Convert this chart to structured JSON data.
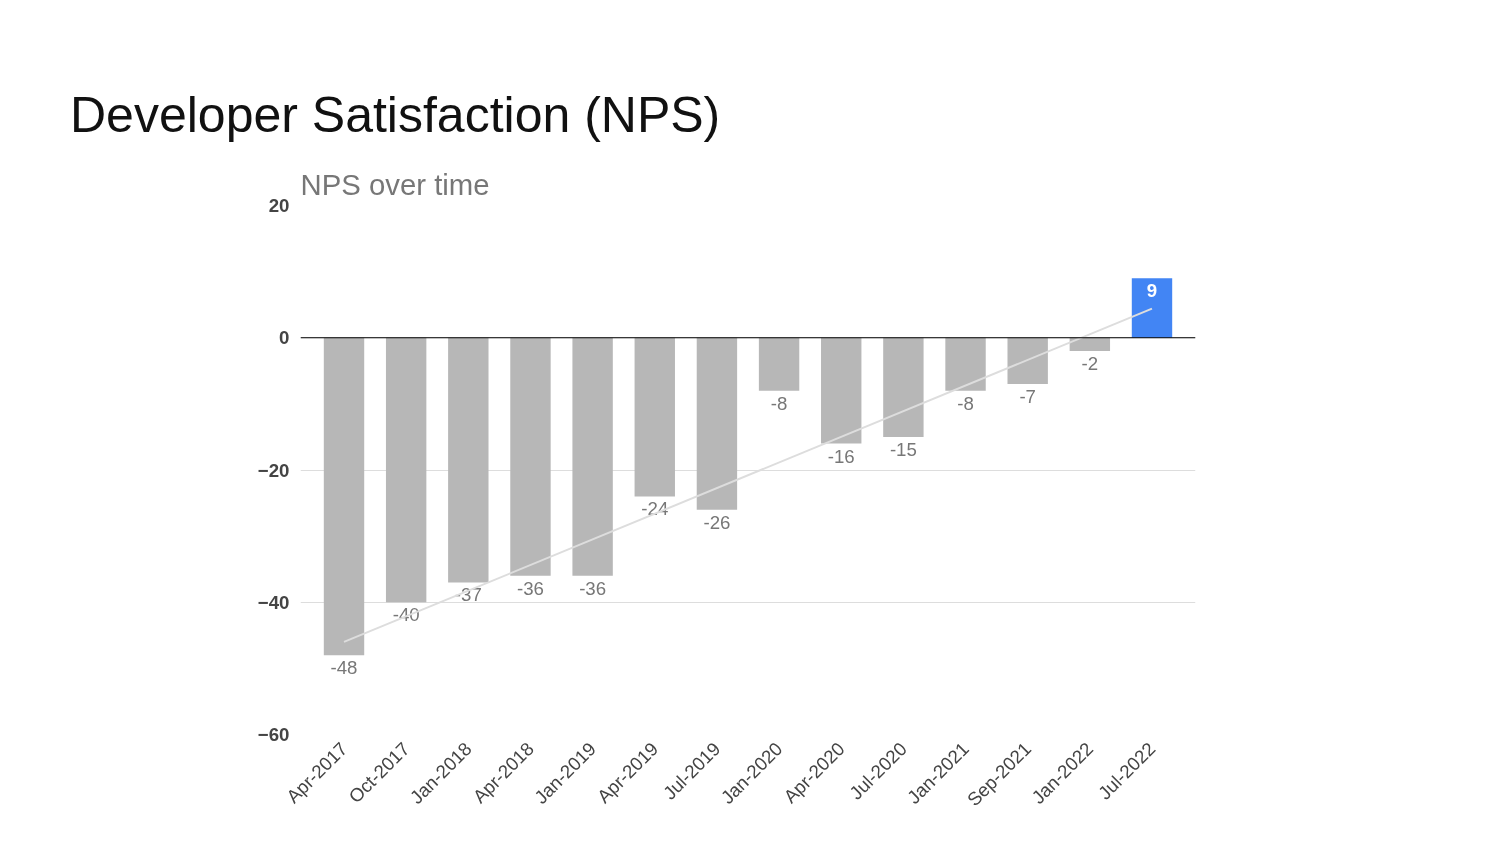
{
  "chart_data": {
    "type": "bar",
    "title": "Developer Satisfaction (NPS)",
    "subtitle": "NPS over time",
    "categories": [
      "Apr-2017",
      "Oct-2017",
      "Jan-2018",
      "Apr-2018",
      "Jan-2019",
      "Apr-2019",
      "Jul-2019",
      "Jan-2020",
      "Apr-2020",
      "Jul-2020",
      "Jan-2021",
      "Sep-2021",
      "Jan-2022",
      "Jul-2022"
    ],
    "series": [
      {
        "values": [
          -48,
          -40,
          -37,
          -36,
          -36,
          -24,
          -26,
          -8,
          -16,
          -15,
          -8,
          -7,
          -2,
          9
        ],
        "value_labels": [
          "-48",
          "-40",
          "-37",
          "-36",
          "-36",
          "-24",
          "-26",
          "-8",
          "-16",
          "-15",
          "-8",
          "-7",
          "-2",
          "9"
        ],
        "colors": [
          "#b7b7b7",
          "#b7b7b7",
          "#b7b7b7",
          "#b7b7b7",
          "#b7b7b7",
          "#b7b7b7",
          "#b7b7b7",
          "#b7b7b7",
          "#b7b7b7",
          "#b7b7b7",
          "#b7b7b7",
          "#b7b7b7",
          "#b7b7b7",
          "#4285f4"
        ]
      },
      {
        "type": "line",
        "color": "#dddddd",
        "x": [
          "Apr-2017",
          "Jul-2022"
        ],
        "values": [
          -46,
          4.4
        ]
      }
    ],
    "ylim": [
      -60,
      20
    ],
    "yticks": [
      -60,
      -40,
      -20,
      0,
      20
    ],
    "grid": "y"
  }
}
